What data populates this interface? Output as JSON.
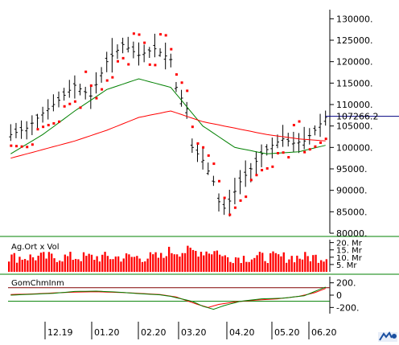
{
  "chart_data": [
    {
      "type": "candlestick",
      "panel": "price",
      "ylim": [
        80000,
        131000
      ],
      "y_ticks": [
        {
          "value": 130000,
          "label": "130000."
        },
        {
          "value": 125000,
          "label": "125000."
        },
        {
          "value": 120000,
          "label": "120000."
        },
        {
          "value": 115000,
          "label": "115000."
        },
        {
          "value": 110000,
          "label": "110000."
        },
        {
          "value": 105000,
          "label": "105000."
        },
        {
          "value": 100000,
          "label": "100000."
        },
        {
          "value": 95000,
          "label": "95000."
        },
        {
          "value": 90000,
          "label": "90000."
        },
        {
          "value": 85000,
          "label": "85000."
        },
        {
          "value": 80000,
          "label": "80000."
        }
      ],
      "last_value": {
        "value": 107266.2,
        "label": "107266.2"
      },
      "x_ticks": [
        "12.19",
        "01.20",
        "02.20",
        "03.20",
        "04.20",
        "05.20",
        "06.20"
      ],
      "price_anchors": [
        {
          "x": 0,
          "y": 103000
        },
        {
          "x": 3,
          "y": 104500
        },
        {
          "x": 6,
          "y": 108000
        },
        {
          "x": 9,
          "y": 111000
        },
        {
          "x": 12,
          "y": 114500
        },
        {
          "x": 15,
          "y": 112000
        },
        {
          "x": 18,
          "y": 120000
        },
        {
          "x": 21,
          "y": 124000
        },
        {
          "x": 24,
          "y": 121500
        },
        {
          "x": 27,
          "y": 123000
        },
        {
          "x": 30,
          "y": 120500
        },
        {
          "x": 31,
          "y": 114000
        },
        {
          "x": 33,
          "y": 109000
        },
        {
          "x": 34,
          "y": 100000
        },
        {
          "x": 36,
          "y": 97000
        },
        {
          "x": 38,
          "y": 92000
        },
        {
          "x": 39.5,
          "y": 85000
        },
        {
          "x": 41,
          "y": 87500
        },
        {
          "x": 43,
          "y": 92000
        },
        {
          "x": 45,
          "y": 95000
        },
        {
          "x": 47,
          "y": 98500
        },
        {
          "x": 49,
          "y": 100500
        },
        {
          "x": 51,
          "y": 102000
        },
        {
          "x": 53,
          "y": 101000
        },
        {
          "x": 55,
          "y": 101500
        },
        {
          "x": 57,
          "y": 104000
        },
        {
          "x": 59,
          "y": 107000
        }
      ],
      "series": [
        {
          "kind": "price",
          "color": "#000000"
        },
        {
          "kind": "parabolic-sar",
          "color": "#ff0000"
        },
        {
          "kind": "moving-average-short",
          "color": "#008000",
          "points": [
            [
              0,
              98500
            ],
            [
              6,
              103000
            ],
            [
              12,
              108500
            ],
            [
              18,
              113500
            ],
            [
              24,
              116000
            ],
            [
              30,
              114000
            ],
            [
              36,
              105000
            ],
            [
              42,
              100000
            ],
            [
              48,
              98500
            ],
            [
              54,
              99000
            ],
            [
              59,
              100500
            ]
          ]
        },
        {
          "kind": "moving-average-long",
          "color": "#ff0000",
          "points": [
            [
              0,
              97500
            ],
            [
              6,
              99500
            ],
            [
              12,
              101500
            ],
            [
              18,
              104000
            ],
            [
              24,
              107000
            ],
            [
              30,
              108500
            ],
            [
              36,
              106000
            ],
            [
              42,
              104500
            ],
            [
              48,
              103000
            ],
            [
              54,
              102000
            ],
            [
              59,
              101500
            ]
          ]
        }
      ]
    },
    {
      "type": "bar",
      "panel": "volume",
      "label": "Ag.Ort x Vol",
      "y_ticks": [
        {
          "value": 20,
          "label": "20. Mr"
        },
        {
          "value": 15,
          "label": "15. Mr"
        },
        {
          "value": 10,
          "label": "10. Mr"
        },
        {
          "value": 5,
          "label": "5. Mr"
        }
      ],
      "ylim": [
        0,
        22
      ],
      "bar_color": "#ff0000"
    },
    {
      "type": "line",
      "panel": "indicator",
      "label": "GomChmInm",
      "ylim": [
        -300,
        300
      ],
      "y_ticks": [
        {
          "value": 200,
          "label": "200."
        },
        {
          "value": 0,
          "label": "0"
        },
        {
          "value": -200,
          "label": "-200."
        }
      ],
      "reference_levels": [
        120,
        -100
      ],
      "series": [
        {
          "color": "#ff0000",
          "points": [
            [
              0,
              10
            ],
            [
              4,
              20
            ],
            [
              8,
              35
            ],
            [
              12,
              50
            ],
            [
              16,
              55
            ],
            [
              20,
              45
            ],
            [
              24,
              30
            ],
            [
              28,
              10
            ],
            [
              31,
              -30
            ],
            [
              33,
              -90
            ],
            [
              35,
              -150
            ],
            [
              37,
              -200
            ],
            [
              39,
              -150
            ],
            [
              42,
              -110
            ],
            [
              46,
              -80
            ],
            [
              50,
              -60
            ],
            [
              54,
              -20
            ],
            [
              57,
              40
            ],
            [
              59,
              110
            ]
          ]
        },
        {
          "color": "#008000",
          "points": [
            [
              0,
              0
            ],
            [
              4,
              15
            ],
            [
              8,
              30
            ],
            [
              12,
              60
            ],
            [
              16,
              65
            ],
            [
              20,
              50
            ],
            [
              24,
              25
            ],
            [
              28,
              5
            ],
            [
              30,
              -20
            ],
            [
              32,
              -60
            ],
            [
              34,
              -100
            ],
            [
              36,
              -180
            ],
            [
              38,
              -230
            ],
            [
              40,
              -170
            ],
            [
              43,
              -100
            ],
            [
              47,
              -60
            ],
            [
              51,
              -50
            ],
            [
              55,
              -10
            ],
            [
              57,
              60
            ],
            [
              59,
              130
            ]
          ]
        }
      ]
    }
  ],
  "colors": {
    "grid_line": "#008000",
    "axis": "#000000",
    "last_value_line": "#000080"
  }
}
